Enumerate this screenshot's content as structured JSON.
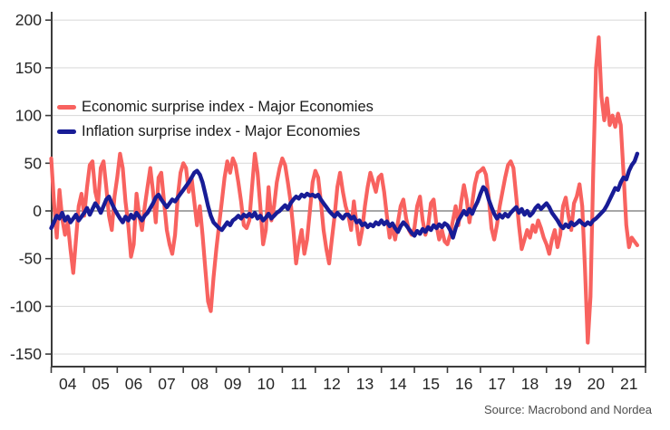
{
  "source": {
    "text": "Source: Macrobond and Nordea"
  },
  "colors": {
    "economic_line": "#F8625F",
    "inflation_line": "#181C96",
    "gridline": "#DCDCDC",
    "zero_line": "#8A8A8A",
    "axis": "#3C3C3C",
    "tick_text": "#262626",
    "background": "#FFFFFF"
  },
  "chart_data": {
    "type": "line",
    "title": "",
    "xlabel": "",
    "ylabel": "",
    "grid": "horizontal",
    "legend_position": "top-left-inside",
    "x_start_year": 2004,
    "x_points_per_year": 12,
    "xlim": [
      2004,
      2022
    ],
    "ylim": [
      -162,
      208
    ],
    "y_ticks": [
      200,
      150,
      100,
      50,
      0,
      -50,
      -100,
      -150
    ],
    "x_tick_labels": [
      "04",
      "05",
      "06",
      "07",
      "08",
      "09",
      "10",
      "11",
      "12",
      "13",
      "14",
      "15",
      "16",
      "17",
      "18",
      "19",
      "20",
      "21"
    ],
    "series": [
      {
        "name": "Economic surprise index - Major Economies",
        "color": "#F8625F",
        "values": [
          55,
          10,
          -28,
          22,
          -8,
          -25,
          -12,
          -40,
          -65,
          -30,
          5,
          18,
          -5,
          25,
          48,
          52,
          20,
          8,
          45,
          52,
          25,
          -5,
          -20,
          15,
          35,
          60,
          45,
          10,
          -15,
          -48,
          -35,
          18,
          -5,
          -20,
          5,
          25,
          45,
          20,
          -12,
          35,
          40,
          10,
          -20,
          -35,
          -45,
          -25,
          15,
          40,
          50,
          45,
          20,
          35,
          10,
          -15,
          5,
          -25,
          -60,
          -95,
          -105,
          -70,
          -40,
          -15,
          10,
          35,
          52,
          40,
          55,
          48,
          30,
          10,
          -15,
          -18,
          -10,
          25,
          60,
          40,
          5,
          -35,
          -20,
          25,
          -10,
          5,
          30,
          45,
          55,
          48,
          30,
          10,
          -20,
          -55,
          -35,
          -20,
          -45,
          -30,
          0,
          30,
          42,
          35,
          10,
          -20,
          -40,
          -55,
          -30,
          -5,
          25,
          40,
          20,
          5,
          -5,
          -20,
          10,
          -15,
          -35,
          -20,
          5,
          25,
          40,
          30,
          20,
          35,
          38,
          20,
          -5,
          -28,
          -15,
          -30,
          -12,
          5,
          12,
          -8,
          -20,
          -25,
          -18,
          5,
          15,
          -10,
          -25,
          -15,
          8,
          12,
          -15,
          -30,
          -20,
          -32,
          -35,
          -25,
          -10,
          5,
          -15,
          10,
          27,
          12,
          -12,
          8,
          28,
          40,
          42,
          45,
          38,
          15,
          -18,
          -30,
          -15,
          5,
          20,
          35,
          48,
          52,
          45,
          15,
          -15,
          -40,
          -30,
          -20,
          -28,
          -15,
          -22,
          -10,
          -18,
          -28,
          -35,
          -45,
          -30,
          -20,
          -38,
          -25,
          5,
          14,
          -5,
          -20,
          8,
          15,
          28,
          5,
          -60,
          -138,
          -90,
          40,
          150,
          182,
          120,
          95,
          118,
          90,
          100,
          88,
          102,
          90,
          40,
          -15,
          -38,
          -28,
          -32,
          -36
        ]
      },
      {
        "name": "Inflation surprise index - Major Economies",
        "color": "#181C96",
        "values": [
          -18,
          -12,
          -5,
          -8,
          -2,
          -10,
          -6,
          -12,
          -8,
          -4,
          -10,
          -6,
          -2,
          3,
          -4,
          2,
          8,
          4,
          -2,
          5,
          12,
          15,
          8,
          2,
          -3,
          -8,
          -12,
          -6,
          -10,
          -4,
          -8,
          -2,
          -6,
          -10,
          -5,
          -2,
          3,
          8,
          14,
          17,
          12,
          8,
          4,
          8,
          12,
          10,
          14,
          18,
          22,
          26,
          30,
          35,
          40,
          42,
          38,
          30,
          18,
          5,
          -5,
          -12,
          -15,
          -18,
          -20,
          -16,
          -12,
          -15,
          -10,
          -8,
          -5,
          -8,
          -4,
          -6,
          -3,
          -6,
          -2,
          -8,
          -5,
          -10,
          -7,
          -3,
          -8,
          -5,
          -2,
          0,
          3,
          6,
          2,
          8,
          12,
          15,
          13,
          17,
          15,
          18,
          16,
          17,
          15,
          17,
          12,
          8,
          4,
          0,
          -3,
          -6,
          -2,
          -5,
          -8,
          -4,
          -4,
          -8,
          -6,
          -12,
          -10,
          -15,
          -13,
          -17,
          -14,
          -16,
          -12,
          -14,
          -10,
          -14,
          -11,
          -16,
          -13,
          -18,
          -22,
          -16,
          -12,
          -15,
          -19,
          -23,
          -26,
          -21,
          -24,
          -19,
          -22,
          -17,
          -20,
          -15,
          -18,
          -14,
          -17,
          -13,
          -15,
          -20,
          -28,
          -18,
          -10,
          -5,
          0,
          -4,
          2,
          -3,
          4,
          10,
          18,
          25,
          22,
          12,
          4,
          -3,
          -8,
          -4,
          -7,
          -3,
          -6,
          -2,
          1,
          4,
          -2,
          2,
          -4,
          0,
          -5,
          -2,
          3,
          6,
          2,
          5,
          8,
          4,
          -2,
          -6,
          -10,
          -15,
          -18,
          -14,
          -17,
          -12,
          -15,
          -13,
          -10,
          -13,
          -15,
          -12,
          -14,
          -10,
          -8,
          -5,
          -2,
          1,
          6,
          12,
          18,
          24,
          22,
          30,
          35,
          33,
          42,
          48,
          52,
          60
        ]
      }
    ]
  }
}
